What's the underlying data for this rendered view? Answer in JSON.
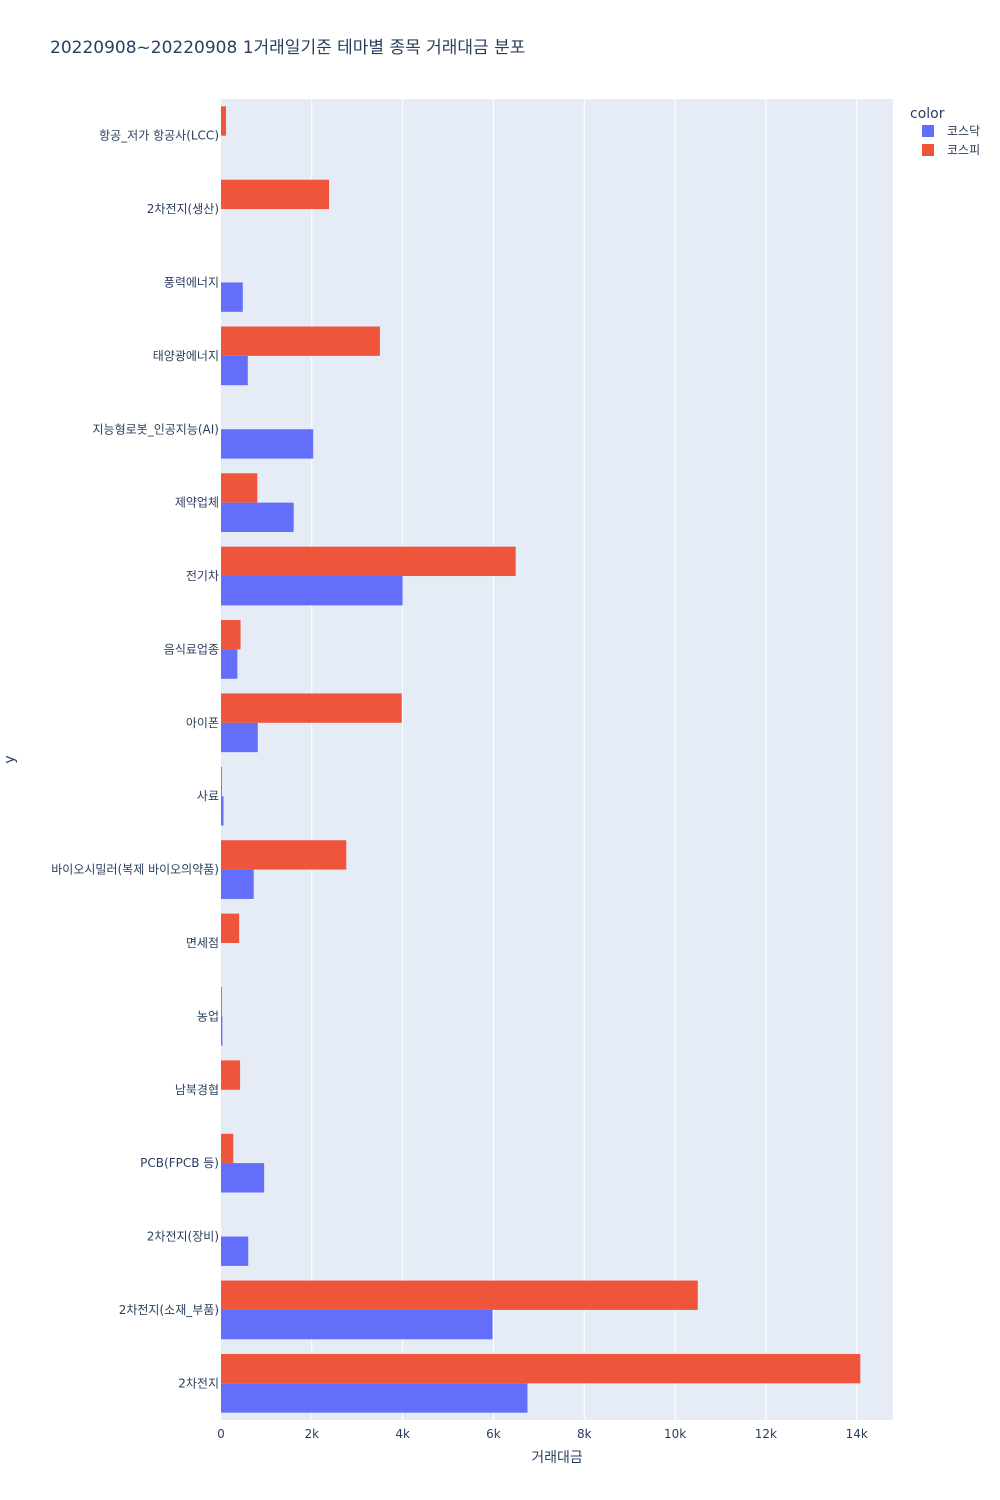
{
  "chart_data": {
    "type": "bar",
    "orientation": "horizontal",
    "title": "20220908~20220908 1거래일기준 테마별 종목 거래대금 분포",
    "xlabel": "거래대금",
    "ylabel": "y",
    "xlim": [
      0,
      14800
    ],
    "x_ticks": [
      0,
      2000,
      4000,
      6000,
      8000,
      10000,
      12000,
      14000
    ],
    "x_tick_labels": [
      "0",
      "2k",
      "4k",
      "6k",
      "8k",
      "10k",
      "12k",
      "14k"
    ],
    "grid": true,
    "legend": {
      "title": "color",
      "position": "top-right"
    },
    "categories": [
      "항공_저가 항공사(LCC)",
      "2차전지(생산)",
      "풍력에너지",
      "태양광에너지",
      "지능형로봇_인공지능(AI)",
      "제약업체",
      "전기차",
      "음식료업종",
      "아이폰",
      "사료",
      "바이오시밀러(복제 바이오의약품)",
      "면세점",
      "농업",
      "남북경협",
      "PCB(FPCB 등)",
      "2차전지(장비)",
      "2차전지(소재_부품)",
      "2차전지"
    ],
    "series": [
      {
        "name": "코스닥",
        "color": "#636efa",
        "values": [
          0,
          0,
          480,
          590,
          2030,
          1600,
          4000,
          360,
          810,
          55,
          720,
          0,
          30,
          0,
          950,
          600,
          5980,
          6750
        ]
      },
      {
        "name": "코스피",
        "color": "#ef553b",
        "values": [
          110,
          2380,
          0,
          3500,
          0,
          800,
          6490,
          430,
          3980,
          20,
          2760,
          400,
          20,
          420,
          270,
          0,
          10500,
          14080
        ]
      }
    ]
  }
}
